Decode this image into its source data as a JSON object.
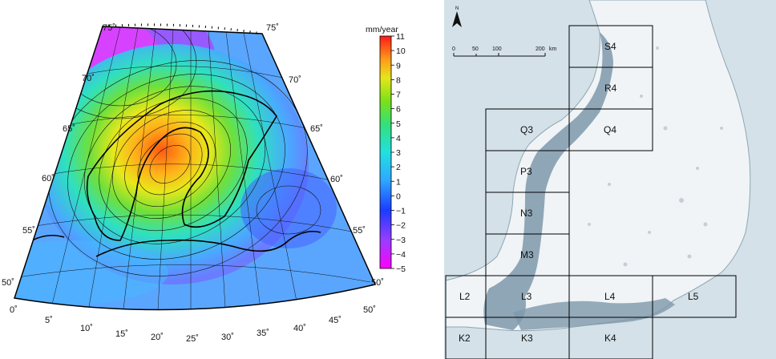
{
  "left_map": {
    "colorbar": {
      "unit": "mm/year",
      "ticks": [
        "11",
        "10",
        "9",
        "8",
        "7",
        "6",
        "5",
        "4",
        "3",
        "2",
        "1",
        "0",
        "−1",
        "−2",
        "−3",
        "−4",
        "−5"
      ]
    },
    "lat_labels_left": [
      "75˚",
      "70˚",
      "65˚",
      "60˚",
      "55˚",
      "50˚"
    ],
    "lat_labels_right": [
      "75˚",
      "70˚",
      "65˚",
      "60˚",
      "55˚",
      "50˚"
    ],
    "lon_labels": [
      "0˚",
      "5˚",
      "10˚",
      "15˚",
      "20˚",
      "25˚",
      "30˚",
      "35˚",
      "40˚",
      "45˚",
      "50˚"
    ]
  },
  "right_map": {
    "north_arrow": "N",
    "scale_labels": [
      "0",
      "50",
      "100",
      "200",
      "km"
    ],
    "tiles": [
      "S4",
      "R4",
      "Q3",
      "Q4",
      "P3",
      "N3",
      "M3",
      "L2",
      "L3",
      "L4",
      "L5",
      "K2",
      "K3",
      "K4"
    ]
  }
}
